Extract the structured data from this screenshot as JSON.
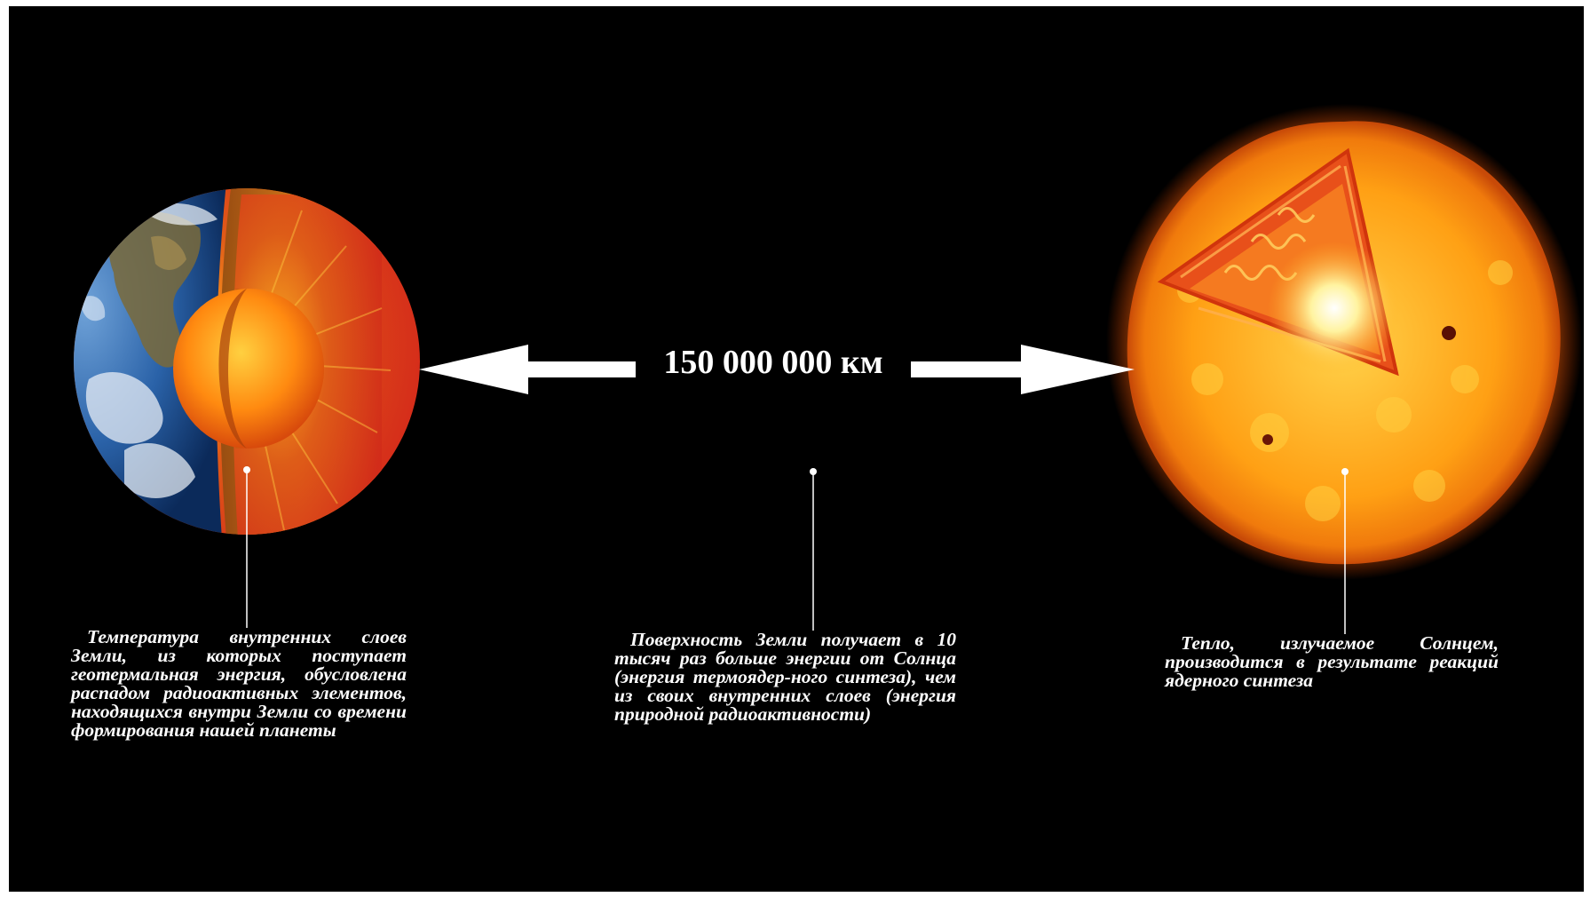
{
  "distance_label": "150 000 000 км",
  "captions": {
    "earth": "Температура внутренних слоев Земли, из которых поступает геотермальная энергия, обусловлена распадом радиоактивных элементов, находящихся внутри Земли со времени формирования нашей планеты",
    "center": "Поверхность Земли получает в 10 тысяч раз больше энергии от Солнца (энергия термоядер-ного синтеза), чем из своих внутренних слоев (энергия природной радиоактивности)",
    "sun": "Тепло, излучаемое Солнцем, производится в результате реакций ядерного синтеза"
  },
  "colors": {
    "background": "#000000",
    "text": "#ffffff",
    "earth_ocean": "#2a62a8",
    "earth_mantle": "#e0401a",
    "earth_core": "#ff7a10",
    "sun_surface": "#ff9a10",
    "sun_core": "#fff6c0"
  },
  "icons": {
    "earth": "earth-cutaway-illustration",
    "sun": "sun-cutaway-illustration",
    "arrow": "double-headed-arrow"
  }
}
